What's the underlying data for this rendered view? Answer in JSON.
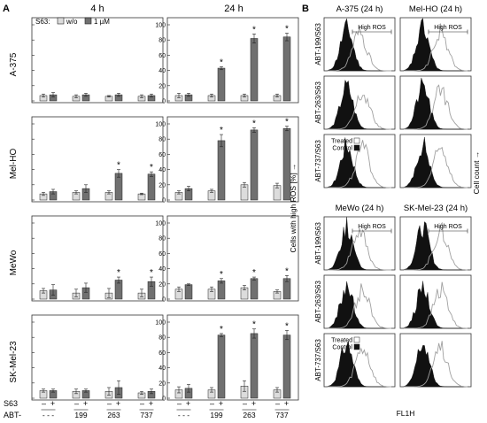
{
  "colors": {
    "w_o": "#dcdcdc",
    "one_uM": "#707070",
    "axis": "#222222",
    "frame": "#333333",
    "treated": "#a0a0a0",
    "control": "#111111"
  },
  "panel_labels": {
    "a": "A",
    "b": "B"
  },
  "times": [
    "4 h",
    "24 h"
  ],
  "cell_lines": [
    "A-375",
    "Mel-HO",
    "MeWo",
    "SK-Mel-23"
  ],
  "legend": {
    "s63": "S63:",
    "w_o": "w/o",
    "one_uM": "1 µM"
  },
  "y_ticks": [
    "0",
    "20",
    "40",
    "60",
    "80",
    "100"
  ],
  "bottom": {
    "s63_label": "S63",
    "abt_label": "ABT-",
    "signs": [
      "–",
      "+",
      "–",
      "+",
      "–",
      "+",
      "–",
      "+"
    ],
    "abt_values": [
      "- - -",
      "199",
      "263",
      "737"
    ]
  },
  "y_axis_label": "Cells with high ROS [%] →",
  "star": "*",
  "chart_data": [
    {
      "type": "bar",
      "title": "",
      "row": "A-375",
      "time": "4 h",
      "categories": [
        "- - -",
        "199",
        "263",
        "737"
      ],
      "ylim": [
        0,
        100
      ],
      "series": [
        {
          "name": "w/o",
          "values": [
            7,
            6,
            6,
            6
          ],
          "errors": [
            2,
            2,
            1,
            2
          ]
        },
        {
          "name": "1 µM",
          "values": [
            8,
            8,
            8,
            7
          ],
          "errors": [
            3,
            2,
            2,
            2
          ]
        }
      ],
      "significant": []
    },
    {
      "type": "bar",
      "title": "",
      "row": "A-375",
      "time": "24 h",
      "categories": [
        "- - -",
        "199",
        "263",
        "737"
      ],
      "ylim": [
        0,
        100
      ],
      "series": [
        {
          "name": "w/o",
          "values": [
            7,
            7,
            7,
            7
          ],
          "errors": [
            3,
            2,
            2,
            2
          ]
        },
        {
          "name": "1 µM",
          "values": [
            8,
            43,
            82,
            84
          ],
          "errors": [
            2,
            2,
            6,
            5
          ]
        }
      ],
      "significant": [
        1,
        2,
        3
      ]
    },
    {
      "type": "bar",
      "title": "",
      "row": "Mel-HO",
      "time": "4 h",
      "categories": [
        "- - -",
        "199",
        "263",
        "737"
      ],
      "ylim": [
        0,
        100
      ],
      "series": [
        {
          "name": "w/o",
          "values": [
            8,
            10,
            10,
            8
          ],
          "errors": [
            2,
            2,
            2,
            1
          ]
        },
        {
          "name": "1 µM",
          "values": [
            11,
            15,
            35,
            34
          ],
          "errors": [
            3,
            5,
            5,
            3
          ]
        }
      ],
      "significant": [
        2,
        3
      ]
    },
    {
      "type": "bar",
      "title": "",
      "row": "Mel-HO",
      "time": "24 h",
      "categories": [
        "- - -",
        "199",
        "263",
        "737"
      ],
      "ylim": [
        0,
        100
      ],
      "series": [
        {
          "name": "w/o",
          "values": [
            10,
            12,
            20,
            19
          ],
          "errors": [
            2,
            2,
            3,
            3
          ]
        },
        {
          "name": "1 µM",
          "values": [
            15,
            78,
            92,
            94
          ],
          "errors": [
            3,
            8,
            3,
            3
          ]
        }
      ],
      "significant": [
        1,
        2,
        3
      ]
    },
    {
      "type": "bar",
      "title": "",
      "row": "MeWo",
      "time": "4 h",
      "categories": [
        "- - -",
        "199",
        "263",
        "737"
      ],
      "ylim": [
        0,
        100
      ],
      "series": [
        {
          "name": "w/o",
          "values": [
            11,
            8,
            8,
            8
          ],
          "errors": [
            3,
            5,
            6,
            5
          ]
        },
        {
          "name": "1 µM",
          "values": [
            12,
            15,
            25,
            23
          ],
          "errors": [
            7,
            6,
            4,
            6
          ]
        }
      ],
      "significant": [
        2,
        3
      ]
    },
    {
      "type": "bar",
      "title": "",
      "row": "MeWo",
      "time": "24 h",
      "categories": [
        "- - -",
        "199",
        "263",
        "737"
      ],
      "ylim": [
        0,
        100
      ],
      "series": [
        {
          "name": "w/o",
          "values": [
            13,
            13,
            15,
            10
          ],
          "errors": [
            3,
            3,
            3,
            2
          ]
        },
        {
          "name": "1 µM",
          "values": [
            19,
            24,
            27,
            27
          ],
          "errors": [
            1,
            3,
            2,
            4
          ]
        }
      ],
      "significant": [
        1,
        2,
        3
      ]
    },
    {
      "type": "bar",
      "title": "",
      "row": "SK-Mel-23",
      "time": "4 h",
      "categories": [
        "- - -",
        "199",
        "263",
        "737"
      ],
      "ylim": [
        0,
        100
      ],
      "series": [
        {
          "name": "w/o",
          "values": [
            10,
            9,
            9,
            7
          ],
          "errors": [
            2,
            3,
            5,
            2
          ]
        },
        {
          "name": "1 µM",
          "values": [
            10,
            10,
            14,
            9
          ],
          "errors": [
            2,
            2,
            9,
            3
          ]
        }
      ],
      "significant": []
    },
    {
      "type": "bar",
      "title": "",
      "row": "SK-Mel-23",
      "time": "24 h",
      "categories": [
        "- - -",
        "199",
        "263",
        "737"
      ],
      "ylim": [
        0,
        100
      ],
      "series": [
        {
          "name": "w/o",
          "values": [
            11,
            11,
            16,
            11
          ],
          "errors": [
            4,
            3,
            7,
            3
          ]
        },
        {
          "name": "1 µM",
          "values": [
            13,
            83,
            85,
            83
          ],
          "errors": [
            5,
            2,
            6,
            6
          ]
        }
      ],
      "significant": [
        1,
        2,
        3
      ]
    }
  ],
  "flow": {
    "columns": [
      "A-375 (24 h)",
      "Mel-HO (24 h)",
      "MeWo (24 h)",
      "SK-Mel-23 (24 h)"
    ],
    "rows": [
      "ABT-199/S63",
      "ABT-263/S63",
      "ABT-737/S63"
    ],
    "gate_label": "High ROS",
    "legend_treated": "Treated",
    "legend_control": "Control",
    "x_axis_label": "FL1H",
    "y_axis_label": "Cell count →"
  }
}
